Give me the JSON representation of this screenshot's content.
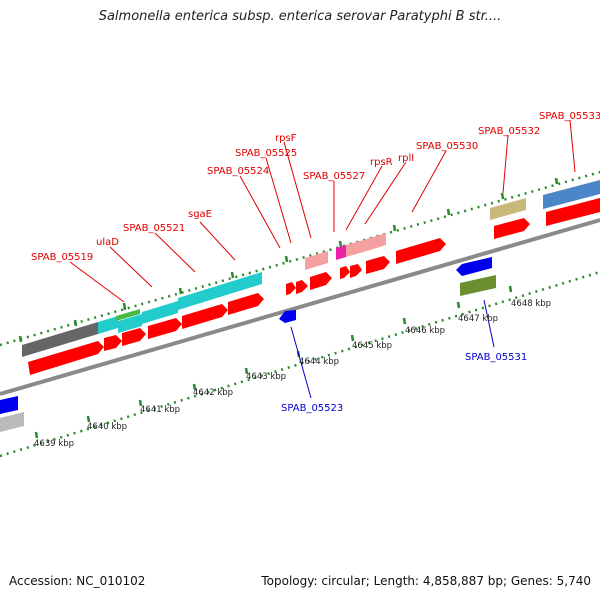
{
  "title": "Salmonella enterica subsp. enterica serovar Paratyphi B str....",
  "accession": "Accession: NC_010102",
  "summary": "Topology: circular; Length: 4,858,887 bp; Genes: 5,740",
  "colors": {
    "forward_gene": "#ff0000",
    "reverse_gene": "#0000ee",
    "label_forward": "#e00000",
    "label_reverse": "#0000cc",
    "tick": "#2a8a2a",
    "backbone": "#8a8a8a"
  },
  "ruler_labels": [
    "4639 kbp",
    "4640 kbp",
    "4641 kbp",
    "4642 kbp",
    "4643 kbp",
    "4644 kbp",
    "4645 kbp",
    "4646 kbp",
    "4647 kbp",
    "4648 kbp"
  ],
  "gene_labels": {
    "SPAB_05519": "SPAB_05519",
    "ulaD": "ulaD",
    "SPAB_05521": "SPAB_05521",
    "sgaE": "sgaE",
    "SPAB_05524": "SPAB_05524",
    "SPAB_05525": "SPAB_05525",
    "rpsF": "rpsF",
    "SPAB_05527": "SPAB_05527",
    "rpsR": "rpsR",
    "rplI": "rplI",
    "SPAB_05530": "SPAB_05530",
    "SPAB_05532": "SPAB_05532",
    "SPAB_05533": "SPAB_05533",
    "SPAB_05523": "SPAB_05523",
    "SPAB_05531": "SPAB_05531"
  }
}
